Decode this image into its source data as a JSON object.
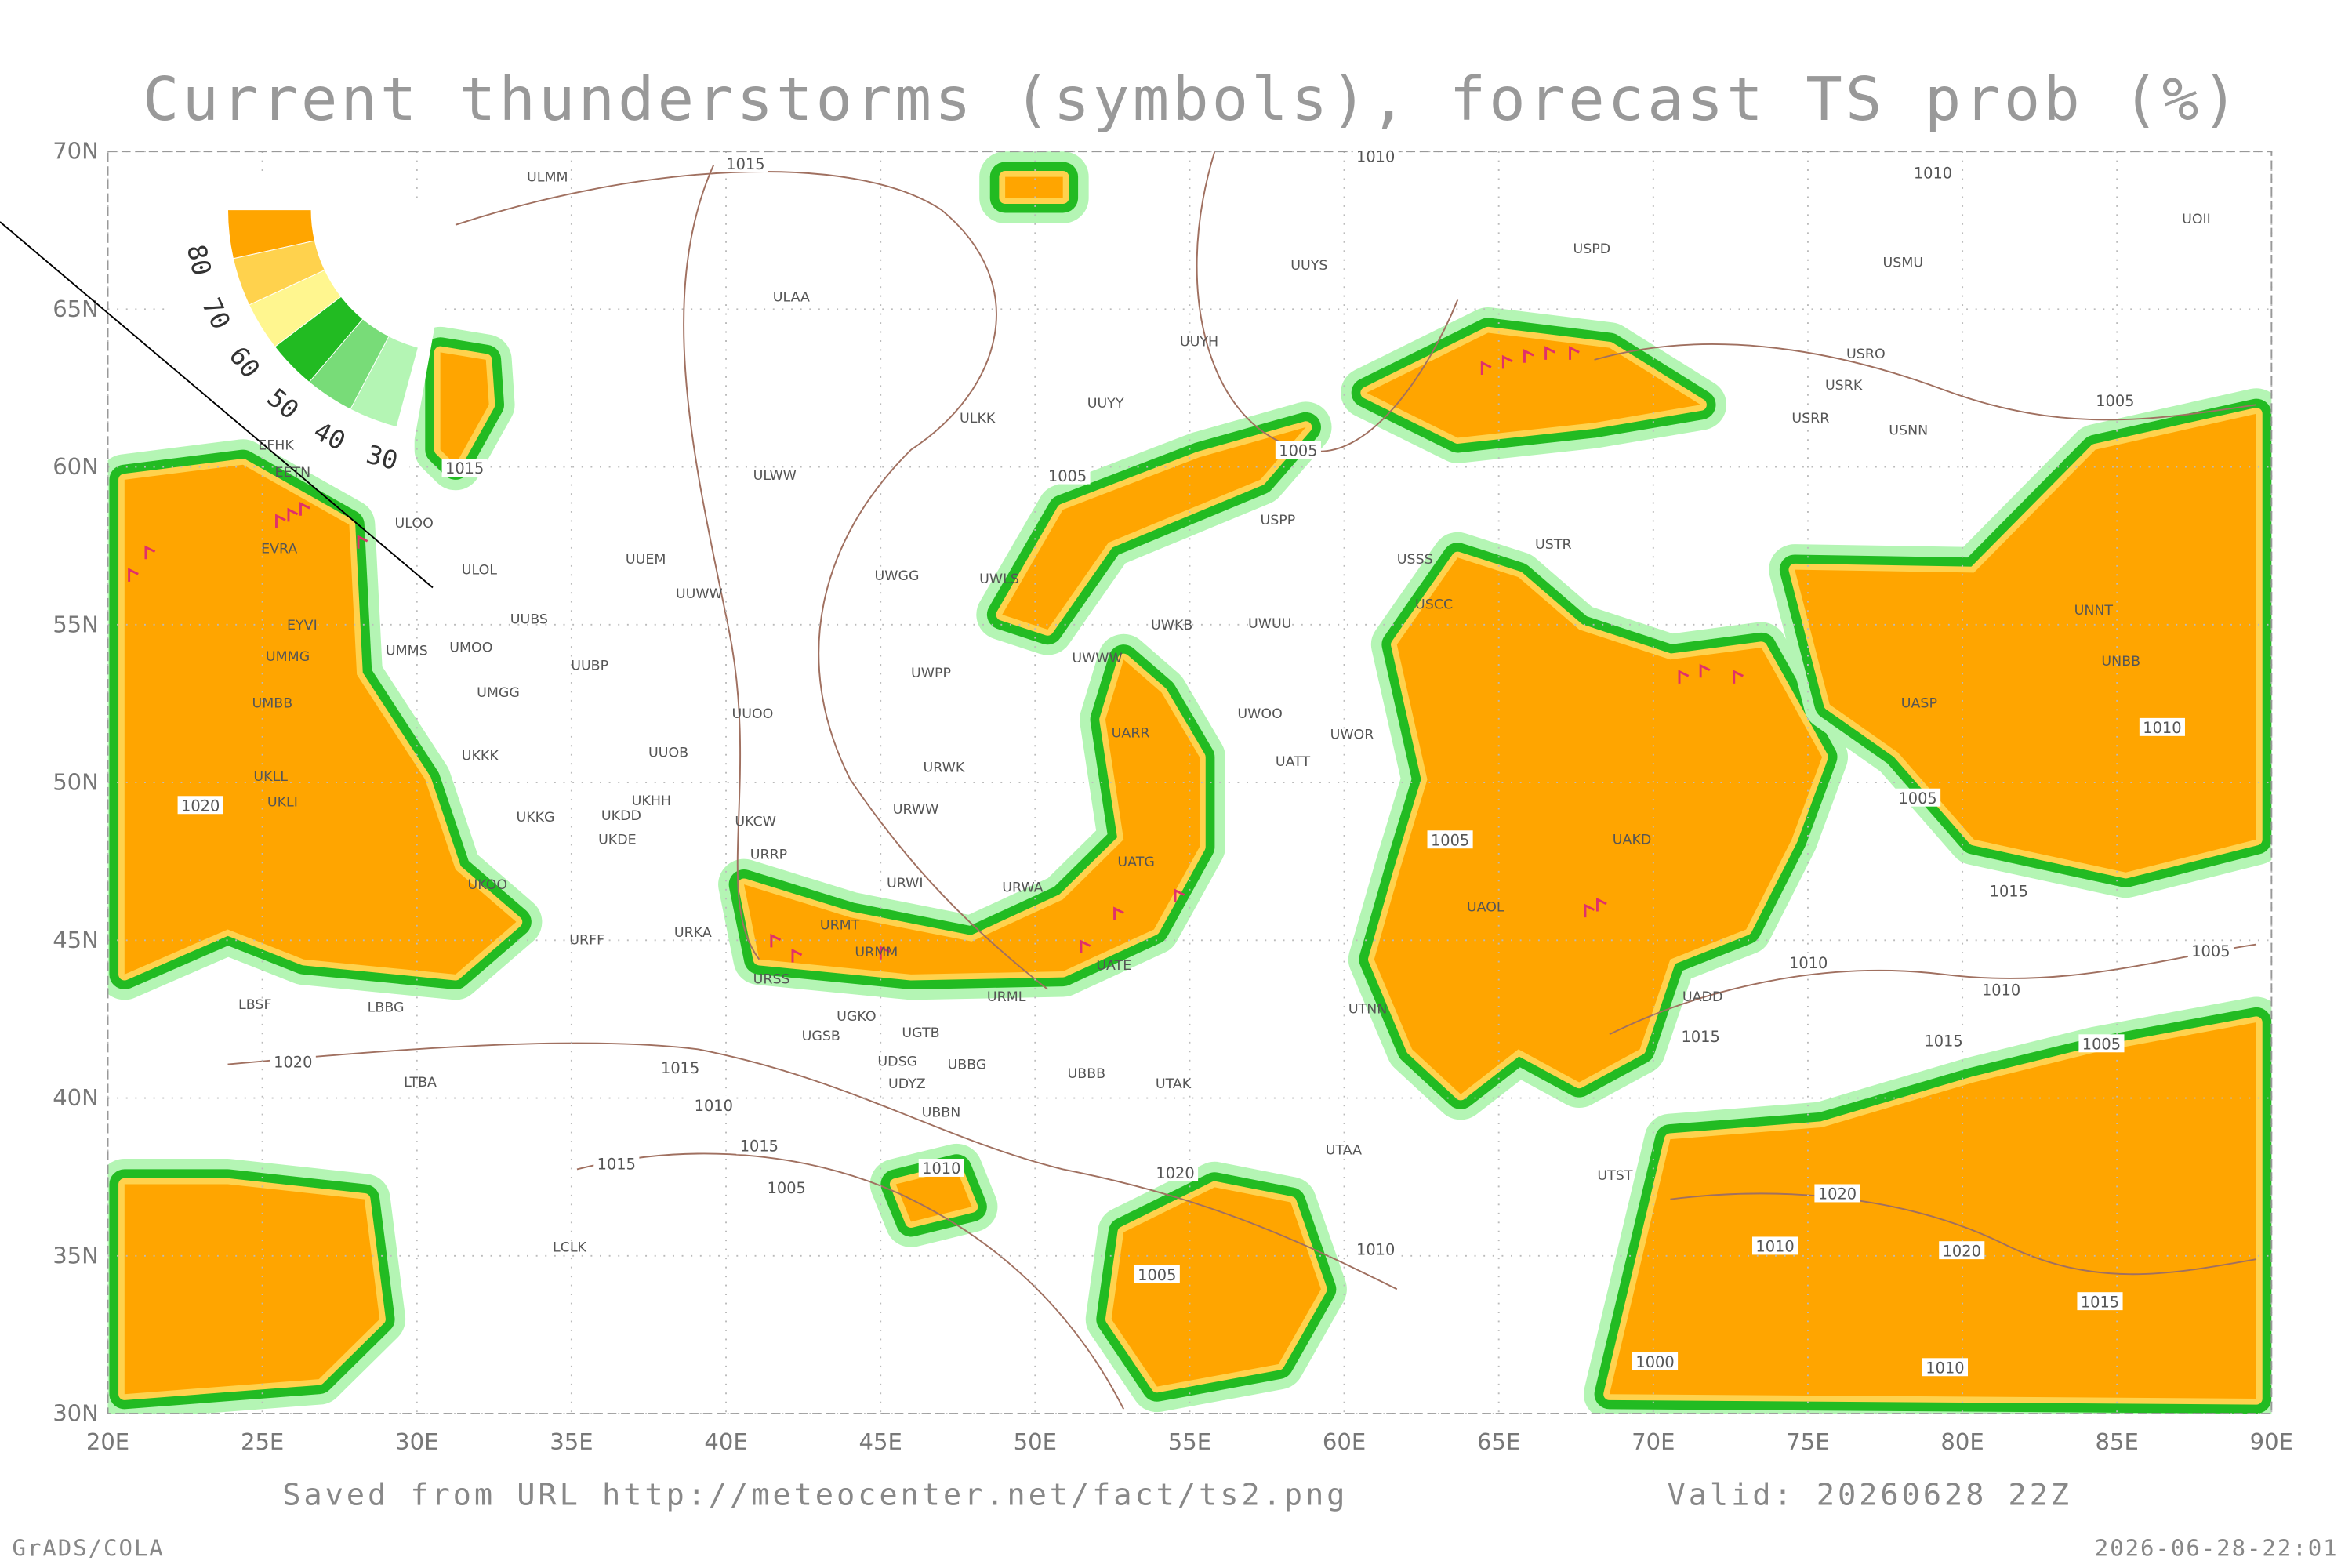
{
  "title": "Current thunderstorms (symbols), forecast TS prob (%)",
  "map": {
    "lon_ticks": [
      {
        "value": 20,
        "label": "20E"
      },
      {
        "value": 25,
        "label": "25E"
      },
      {
        "value": 30,
        "label": "30E"
      },
      {
        "value": 35,
        "label": "35E"
      },
      {
        "value": 40,
        "label": "40E"
      },
      {
        "value": 45,
        "label": "45E"
      },
      {
        "value": 50,
        "label": "50E"
      },
      {
        "value": 55,
        "label": "55E"
      },
      {
        "value": 60,
        "label": "60E"
      },
      {
        "value": 65,
        "label": "65E"
      },
      {
        "value": 70,
        "label": "70E"
      },
      {
        "value": 75,
        "label": "75E"
      },
      {
        "value": 80,
        "label": "80E"
      },
      {
        "value": 85,
        "label": "85E"
      },
      {
        "value": 90,
        "label": "90E"
      }
    ],
    "lat_ticks": [
      {
        "value": 30,
        "label": "30N"
      },
      {
        "value": 35,
        "label": "35N"
      },
      {
        "value": 40,
        "label": "40N"
      },
      {
        "value": 45,
        "label": "45N"
      },
      {
        "value": 50,
        "label": "50N"
      },
      {
        "value": 55,
        "label": "55N"
      },
      {
        "value": 60,
        "label": "60N"
      },
      {
        "value": 65,
        "label": "65N"
      },
      {
        "value": 70,
        "label": "70N"
      }
    ]
  },
  "legend": {
    "levels": [
      30,
      40,
      50,
      60,
      70,
      80
    ]
  },
  "stations": [
    "ULMM",
    "ULAA",
    "UUYH",
    "UUYS",
    "USPD",
    "USMU",
    "UOII",
    "ULKK",
    "UUYY",
    "USRO",
    "USRK",
    "USRR",
    "USNN",
    "ULWW",
    "USPP",
    "UUEM",
    "UUWW",
    "UWGG",
    "UWLS",
    "USSS",
    "USTR",
    "UUBS",
    "UMOO",
    "UWKB",
    "UWUU",
    "USCC",
    "UUBP",
    "UWPP",
    "UWWW",
    "UMGG",
    "UUOO",
    "UARR",
    "UWOO",
    "UWOR",
    "UUOB",
    "UKKK",
    "URWK",
    "UATT",
    "UKHH",
    "UKDD",
    "UKKG",
    "URWW",
    "UKCW",
    "UKDE",
    "URRP",
    "UATG",
    "UKOO",
    "URWI",
    "URWA",
    "URFF",
    "URKA",
    "URMT",
    "URMM",
    "UATE",
    "URSS",
    "URML",
    "UGKO",
    "UGSB",
    "UGTB",
    "UDSG",
    "UBBG",
    "UBBB",
    "UDYZ",
    "UTAK",
    "UBBN",
    "UTAA",
    "LBSF",
    "LBBG",
    "LTBA",
    "LCLK",
    "EVRA",
    "EYVI",
    "UMMG",
    "UMMS",
    "UMBB",
    "UKLL",
    "UKLI",
    "ULOO",
    "ULOL",
    "EETN",
    "EFHK",
    "UASP",
    "UAKD",
    "UAOL",
    "UADD",
    "UTST",
    "UTNN",
    "UNBB",
    "UNNT"
  ],
  "isobar_labels": [
    1015,
    1010,
    1010,
    1005,
    1005,
    1005,
    1015,
    1005,
    1010,
    1005,
    1020,
    1020,
    1015,
    1010,
    1015,
    1015,
    1020,
    1010,
    1005,
    1015,
    1010,
    1005,
    1010,
    1015,
    1005,
    1020,
    1020,
    1010,
    1015,
    1000,
    1010,
    1010,
    1005,
    1015
  ],
  "footer": {
    "source": "Saved from URL http://meteocenter.net/fact/ts2.png",
    "valid": "Valid: 20260628 22Z",
    "software": "GrADS/COLA",
    "timestamp": "2026-06-28-22:01"
  }
}
